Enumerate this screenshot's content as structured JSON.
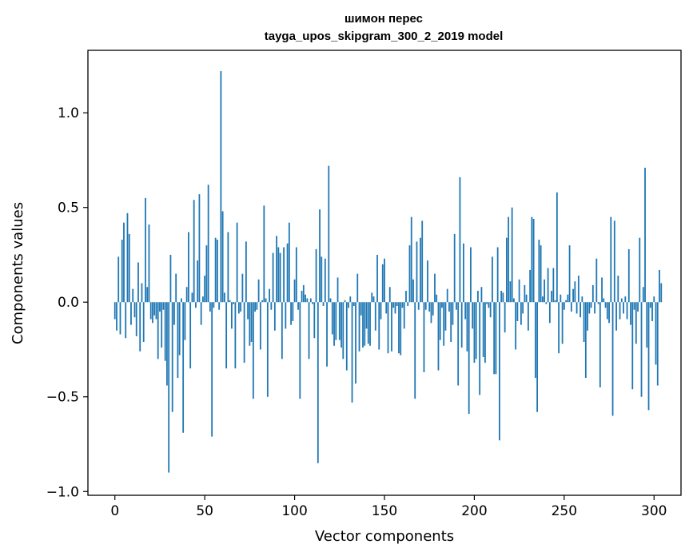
{
  "chart_data": {
    "type": "bar",
    "title": "шимон перес",
    "subtitle": "tayga_upos_skipgram_300_2_2019 model",
    "xlabel": "Vector components",
    "ylabel": "Components values",
    "xlim": [
      -15,
      315
    ],
    "ylim": [
      -1.02,
      1.33
    ],
    "x_ticks": [
      0,
      50,
      100,
      150,
      200,
      250,
      300
    ],
    "x_tick_labels": [
      "0",
      "50",
      "100",
      "150",
      "200",
      "250",
      "300"
    ],
    "y_ticks": [
      -1.0,
      -0.5,
      0.0,
      0.5,
      1.0
    ],
    "y_tick_labels": [
      "−1.0",
      "−0.5",
      "0.0",
      "0.5",
      "1.0"
    ],
    "grid": false,
    "bar_color": "#1f77b4",
    "values": [
      -0.09,
      -0.15,
      0.24,
      -0.17,
      0.33,
      0.42,
      -0.19,
      0.47,
      0.36,
      -0.12,
      0.07,
      -0.08,
      -0.18,
      0.21,
      -0.26,
      0.1,
      -0.21,
      0.55,
      0.08,
      0.41,
      -0.09,
      -0.11,
      -0.07,
      -0.09,
      -0.3,
      -0.05,
      -0.24,
      -0.04,
      -0.31,
      -0.44,
      -0.9,
      0.25,
      -0.58,
      -0.12,
      0.15,
      -0.4,
      -0.28,
      0.02,
      -0.69,
      -0.2,
      0.08,
      0.37,
      -0.35,
      0.05,
      0.54,
      -0.03,
      0.22,
      0.57,
      -0.12,
      0.03,
      0.14,
      0.3,
      0.62,
      -0.05,
      -0.71,
      -0.03,
      0.34,
      0.33,
      -0.04,
      1.22,
      0.48,
      0.05,
      -0.35,
      0.37,
      0.01,
      -0.14,
      -0.01,
      -0.35,
      0.42,
      -0.06,
      -0.05,
      0.15,
      -0.32,
      0.32,
      -0.09,
      -0.23,
      -0.21,
      -0.51,
      -0.05,
      -0.04,
      0.12,
      -0.25,
      0.01,
      0.51,
      0.02,
      -0.5,
      0.07,
      -0.04,
      0.26,
      -0.15,
      0.35,
      0.29,
      0.26,
      -0.3,
      0.29,
      -0.14,
      0.31,
      0.42,
      -0.12,
      -0.1,
      0.12,
      0.29,
      -0.04,
      -0.51,
      0.06,
      0.09,
      0.04,
      0.02,
      -0.3,
      0.02,
      -0.01,
      -0.19,
      0.28,
      -0.85,
      0.49,
      0.24,
      -0.02,
      0.23,
      -0.34,
      0.72,
      0.02,
      -0.17,
      -0.23,
      -0.2,
      0.13,
      -0.2,
      -0.24,
      -0.3,
      0.01,
      -0.36,
      -0.03,
      0.03,
      -0.53,
      -0.02,
      -0.43,
      0.15,
      -0.26,
      -0.07,
      -0.24,
      -0.23,
      -0.14,
      -0.22,
      -0.23,
      0.05,
      0.03,
      -0.15,
      0.25,
      -0.25,
      -0.09,
      0.2,
      0.23,
      -0.06,
      -0.27,
      0.08,
      -0.26,
      -0.03,
      -0.06,
      -0.02,
      -0.27,
      -0.28,
      -0.03,
      -0.14,
      0.06,
      -0.02,
      0.3,
      0.45,
      0.12,
      -0.51,
      0.32,
      -0.04,
      0.34,
      0.43,
      -0.37,
      -0.04,
      0.22,
      -0.05,
      -0.11,
      -0.07,
      0.15,
      0.04,
      -0.36,
      -0.2,
      -0.03,
      -0.23,
      -0.15,
      0.07,
      -0.05,
      -0.21,
      -0.12,
      0.36,
      -0.04,
      -0.44,
      0.66,
      -0.24,
      0.31,
      -0.09,
      -0.26,
      -0.59,
      0.29,
      -0.14,
      -0.32,
      -0.3,
      0.06,
      -0.49,
      0.08,
      -0.29,
      -0.32,
      -0.01,
      -0.03,
      -0.08,
      0.24,
      -0.38,
      -0.38,
      0.29,
      -0.73,
      0.06,
      0.05,
      -0.16,
      0.34,
      0.45,
      0.11,
      0.5,
      0.02,
      -0.25,
      -0.1,
      0.12,
      -0.12,
      -0.06,
      0.09,
      0.04,
      -0.15,
      0.17,
      0.45,
      0.44,
      -0.4,
      -0.58,
      0.33,
      0.3,
      0.03,
      0.12,
      -0.01,
      0.18,
      -0.11,
      0.06,
      0.18,
      0.01,
      0.58,
      -0.27,
      0.04,
      -0.22,
      -0.04,
      0.01,
      0.04,
      0.3,
      -0.05,
      0.07,
      0.11,
      -0.06,
      0.14,
      -0.08,
      0.03,
      -0.21,
      -0.4,
      -0.15,
      -0.06,
      -0.03,
      0.09,
      -0.06,
      0.23,
      -0.01,
      -0.45,
      0.13,
      0.02,
      -0.03,
      -0.09,
      -0.11,
      0.45,
      -0.6,
      0.43,
      -0.15,
      0.14,
      -0.09,
      0.02,
      -0.06,
      0.03,
      -0.09,
      0.28,
      -0.12,
      -0.46,
      -0.04,
      -0.22,
      -0.05,
      0.34,
      -0.5,
      0.08,
      0.71,
      -0.24,
      -0.57,
      -0.03,
      -0.1,
      0.03,
      -0.33,
      -0.44,
      0.17,
      0.1
    ]
  }
}
